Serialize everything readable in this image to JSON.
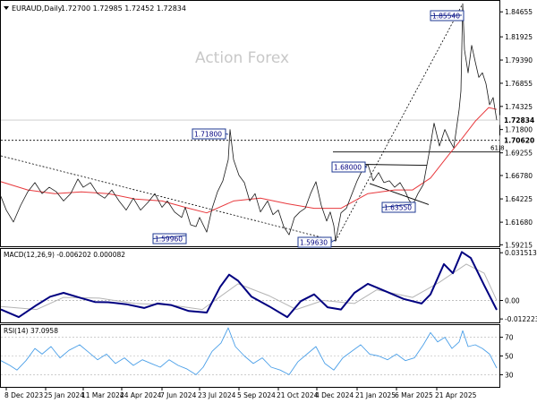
{
  "header": {
    "symbol": "EURAUD,Daily",
    "ohlc": "1.72700 1.72985 1.72452 1.72834"
  },
  "watermark": "Action Forex",
  "colors": {
    "price": "#1a1a1a",
    "ma": "#e8393d",
    "macd": "#000080",
    "signal": "#b4b4b4",
    "rsi": "#4a9fe8",
    "label_border": "#1f3a93",
    "label_text": "#000080",
    "frame": "#000000"
  },
  "chart_data": [
    {
      "type": "line",
      "panel": "price",
      "yticks": [
        "1.84655",
        "1.81925",
        "1.79390",
        "1.76855",
        "1.74325",
        "1.71800",
        "1.69255",
        "1.66780",
        "1.64225",
        "1.61680",
        "1.59215"
      ],
      "ylim": [
        1.5905,
        1.8585
      ],
      "current_price": "1.72834",
      "ref_level": "1.70620",
      "fib_label": "61.8",
      "annotations": [
        {
          "text": "1.85540",
          "x": "2025-03-14",
          "y": 1.8554
        },
        {
          "text": "1.71800",
          "x": "2024-07-26",
          "y": 1.718
        },
        {
          "text": "1.68000",
          "x": "2024-12-05",
          "y": 1.68
        },
        {
          "text": "1.63550",
          "x": "2025-01-31",
          "y": 1.6355
        },
        {
          "text": "1.59960",
          "x": "2024-06-12",
          "y": 1.5996
        },
        {
          "text": "1.59630",
          "x": "2024-11-18",
          "y": 1.5963
        }
      ],
      "series": [
        {
          "values": [
            [
              0,
              1.645
            ],
            [
              6,
              1.63
            ],
            [
              14,
              1.617
            ],
            [
              22,
              1.635
            ],
            [
              30,
              1.65
            ],
            [
              38,
              1.66
            ],
            [
              46,
              1.648
            ],
            [
              54,
              1.655
            ],
            [
              62,
              1.65
            ],
            [
              70,
              1.64
            ],
            [
              78,
              1.648
            ],
            [
              86,
              1.664
            ],
            [
              92,
              1.655
            ],
            [
              100,
              1.66
            ],
            [
              108,
              1.648
            ],
            [
              116,
              1.643
            ],
            [
              124,
              1.652
            ],
            [
              132,
              1.64
            ],
            [
              140,
              1.63
            ],
            [
              148,
              1.643
            ],
            [
              156,
              1.63
            ],
            [
              164,
              1.638
            ],
            [
              172,
              1.648
            ],
            [
              180,
              1.633
            ],
            [
              186,
              1.64
            ],
            [
              194,
              1.628
            ],
            [
              202,
              1.622
            ],
            [
              206,
              1.633
            ],
            [
              212,
              1.614
            ],
            [
              218,
              1.612
            ],
            [
              222,
              1.622
            ],
            [
              230,
              1.606
            ],
            [
              236,
              1.632
            ],
            [
              242,
              1.65
            ],
            [
              248,
              1.662
            ],
            [
              254,
              1.685
            ],
            [
              256,
              1.718
            ],
            [
              260,
              1.685
            ],
            [
              266,
              1.668
            ],
            [
              272,
              1.66
            ],
            [
              278,
              1.64
            ],
            [
              284,
              1.648
            ],
            [
              290,
              1.628
            ],
            [
              298,
              1.64
            ],
            [
              304,
              1.625
            ],
            [
              310,
              1.63
            ],
            [
              316,
              1.612
            ],
            [
              322,
              1.603
            ],
            [
              328,
              1.622
            ],
            [
              334,
              1.628
            ],
            [
              340,
              1.632
            ],
            [
              346,
              1.648
            ],
            [
              352,
              1.661
            ],
            [
              358,
              1.635
            ],
            [
              364,
              1.618
            ],
            [
              368,
              1.628
            ],
            [
              372,
              1.613
            ],
            [
              374,
              1.5963
            ],
            [
              380,
              1.627
            ],
            [
              386,
              1.632
            ],
            [
              392,
              1.647
            ],
            [
              398,
              1.662
            ],
            [
              404,
              1.674
            ],
            [
              410,
              1.68
            ],
            [
              416,
              1.662
            ],
            [
              422,
              1.671
            ],
            [
              428,
              1.66
            ],
            [
              434,
              1.662
            ],
            [
              440,
              1.655
            ],
            [
              446,
              1.66
            ],
            [
              452,
              1.65
            ],
            [
              456,
              1.641
            ],
            [
              460,
              1.6355
            ],
            [
              466,
              1.648
            ],
            [
              472,
              1.658
            ],
            [
              478,
              1.69
            ],
            [
              484,
              1.725
            ],
            [
              490,
              1.7
            ],
            [
              496,
              1.718
            ],
            [
              502,
              1.705
            ],
            [
              506,
              1.698
            ],
            [
              512,
              1.74
            ],
            [
              514,
              1.76
            ],
            [
              516,
              1.8554
            ],
            [
              518,
              1.805
            ],
            [
              522,
              1.78
            ],
            [
              526,
              1.81
            ],
            [
              530,
              1.792
            ],
            [
              534,
              1.775
            ],
            [
              538,
              1.78
            ],
            [
              542,
              1.768
            ],
            [
              546,
              1.745
            ],
            [
              550,
              1.753
            ],
            [
              554,
              1.7283
            ]
          ]
        },
        {
          "values": [
            [
              0,
              1.661
            ],
            [
              30,
              1.652
            ],
            [
              60,
              1.648
            ],
            [
              90,
              1.65
            ],
            [
              120,
              1.648
            ],
            [
              150,
              1.642
            ],
            [
              180,
              1.64
            ],
            [
              210,
              1.632
            ],
            [
              230,
              1.627
            ],
            [
              260,
              1.64
            ],
            [
              290,
              1.643
            ],
            [
              320,
              1.637
            ],
            [
              350,
              1.632
            ],
            [
              380,
              1.632
            ],
            [
              410,
              1.648
            ],
            [
              440,
              1.652
            ],
            [
              460,
              1.652
            ],
            [
              480,
              1.665
            ],
            [
              500,
              1.69
            ],
            [
              515,
              1.708
            ],
            [
              530,
              1.727
            ],
            [
              545,
              1.742
            ],
            [
              554,
              1.74
            ]
          ]
        }
      ]
    },
    {
      "type": "line",
      "panel": "macd",
      "label": "MACD(12,26,9) -0.006202 0.000082",
      "yticks": [
        "0.031513",
        "0.00",
        "-0.012223"
      ],
      "ylim": [
        -0.0145,
        0.034
      ],
      "series": [
        {
          "values": [
            [
              0,
              -0.006
            ],
            [
              20,
              -0.011
            ],
            [
              40,
              -0.003
            ],
            [
              55,
              0.0025
            ],
            [
              70,
              0.005
            ],
            [
              90,
              0.0015
            ],
            [
              105,
              -0.001
            ],
            [
              120,
              -0.0012
            ],
            [
              140,
              -0.0025
            ],
            [
              160,
              -0.005
            ],
            [
              175,
              -0.002
            ],
            [
              190,
              -0.003
            ],
            [
              210,
              -0.007
            ],
            [
              230,
              -0.008
            ],
            [
              245,
              0.009
            ],
            [
              255,
              0.017
            ],
            [
              265,
              0.013
            ],
            [
              280,
              0.0025
            ],
            [
              300,
              -0.004
            ],
            [
              320,
              -0.011
            ],
            [
              335,
              -0.0005
            ],
            [
              350,
              0.004
            ],
            [
              365,
              -0.0045
            ],
            [
              380,
              -0.006
            ],
            [
              395,
              0.005
            ],
            [
              410,
              0.011
            ],
            [
              430,
              0.006
            ],
            [
              450,
              0.001
            ],
            [
              470,
              -0.002
            ],
            [
              480,
              0.004
            ],
            [
              495,
              0.024
            ],
            [
              505,
              0.018
            ],
            [
              515,
              0.032
            ],
            [
              525,
              0.028
            ],
            [
              540,
              0.01
            ],
            [
              554,
              -0.0062
            ]
          ]
        },
        {
          "values": [
            [
              0,
              -0.004
            ],
            [
              40,
              -0.006
            ],
            [
              70,
              0.002
            ],
            [
              110,
              0.0015
            ],
            [
              150,
              -0.002
            ],
            [
              190,
              -0.003
            ],
            [
              225,
              -0.006
            ],
            [
              265,
              0.011
            ],
            [
              300,
              0.003
            ],
            [
              330,
              -0.006
            ],
            [
              360,
              0.0
            ],
            [
              395,
              -0.002
            ],
            [
              420,
              0.007
            ],
            [
              460,
              0.002
            ],
            [
              490,
              0.012
            ],
            [
              520,
              0.024
            ],
            [
              540,
              0.018
            ],
            [
              554,
              0.0001
            ]
          ]
        }
      ]
    },
    {
      "type": "line",
      "panel": "rsi",
      "label": "RSI(14) 37.0958",
      "yticks": [
        "70",
        "50",
        "30"
      ],
      "ylim": [
        17,
        83
      ],
      "series": [
        {
          "values": [
            [
              0,
              45
            ],
            [
              10,
              40
            ],
            [
              18,
              35
            ],
            [
              28,
              45
            ],
            [
              38,
              58
            ],
            [
              46,
              52
            ],
            [
              56,
              60
            ],
            [
              66,
              48
            ],
            [
              76,
              56
            ],
            [
              88,
              62
            ],
            [
              98,
              54
            ],
            [
              108,
              46
            ],
            [
              118,
              52
            ],
            [
              128,
              42
            ],
            [
              138,
              48
            ],
            [
              148,
              40
            ],
            [
              158,
              46
            ],
            [
              168,
              42
            ],
            [
              178,
              38
            ],
            [
              188,
              46
            ],
            [
              198,
              40
            ],
            [
              208,
              36
            ],
            [
              218,
              30
            ],
            [
              226,
              38
            ],
            [
              236,
              55
            ],
            [
              246,
              64
            ],
            [
              254,
              80
            ],
            [
              262,
              60
            ],
            [
              272,
              50
            ],
            [
              282,
              42
            ],
            [
              292,
              48
            ],
            [
              302,
              38
            ],
            [
              312,
              35
            ],
            [
              322,
              30
            ],
            [
              332,
              44
            ],
            [
              342,
              52
            ],
            [
              352,
              60
            ],
            [
              362,
              42
            ],
            [
              372,
              35
            ],
            [
              382,
              48
            ],
            [
              392,
              55
            ],
            [
              402,
              62
            ],
            [
              412,
              52
            ],
            [
              422,
              50
            ],
            [
              432,
              46
            ],
            [
              442,
              52
            ],
            [
              452,
              45
            ],
            [
              462,
              48
            ],
            [
              472,
              62
            ],
            [
              480,
              75
            ],
            [
              488,
              65
            ],
            [
              496,
              70
            ],
            [
              504,
              58
            ],
            [
              512,
              65
            ],
            [
              516,
              77
            ],
            [
              522,
              60
            ],
            [
              530,
              62
            ],
            [
              538,
              58
            ],
            [
              546,
              52
            ],
            [
              554,
              37.1
            ]
          ]
        }
      ]
    }
  ],
  "x_axis": {
    "ticks": [
      "8 Dec 2023",
      "25 Jan 2024",
      "11 Mar 2024",
      "24 Apr 2024",
      "7 Jun 2024",
      "23 Jul 2024",
      "5 Sep 2024",
      "21 Oct 2024",
      "4 Dec 2024",
      "21 Jan 2025",
      "6 Mar 2025",
      "21 Apr 2025"
    ]
  }
}
